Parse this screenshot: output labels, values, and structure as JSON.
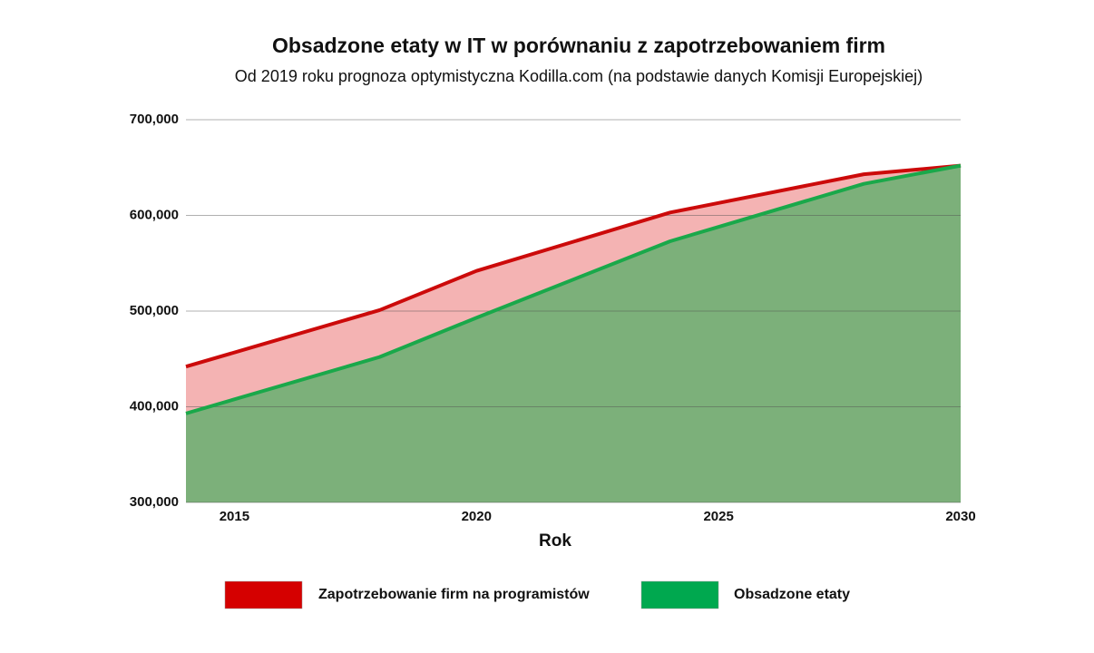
{
  "chart_data": {
    "type": "area",
    "title": "Obsadzone etaty w IT w porównaniu z zapotrzebowaniem firm",
    "subtitle": "Od 2019 roku prognoza optymistyczna Kodilla.com (na podstawie danych Komisji Europejskiej)",
    "x_label": "Rok",
    "x": [
      2014,
      2018,
      2020,
      2024,
      2028,
      2030
    ],
    "series": [
      {
        "name": "Zapotrzebowanie firm na programistów",
        "color": "#d50000",
        "line_color": "#cc0a0a",
        "fill": "#f4b3b3",
        "values": [
          442000,
          501000,
          542000,
          603000,
          643000,
          652000
        ]
      },
      {
        "name": "Obsadzone etaty",
        "color": "#00a84f",
        "line_color": "#1aa84a",
        "fill": "#7cb07a",
        "values": [
          393000,
          452000,
          493000,
          573000,
          633000,
          652000
        ]
      }
    ],
    "xlim": [
      2014,
      2030
    ],
    "xticks": [
      2015,
      2020,
      2025,
      2030
    ],
    "ylim": [
      300000,
      700000
    ],
    "yticks": [
      {
        "value": 300000,
        "label": "300,000"
      },
      {
        "value": 400000,
        "label": "400,000"
      },
      {
        "value": 500000,
        "label": "500,000"
      },
      {
        "value": 600000,
        "label": "600,000"
      },
      {
        "value": 700000,
        "label": "700,000"
      }
    ],
    "grid": true,
    "legend": "bottom"
  }
}
